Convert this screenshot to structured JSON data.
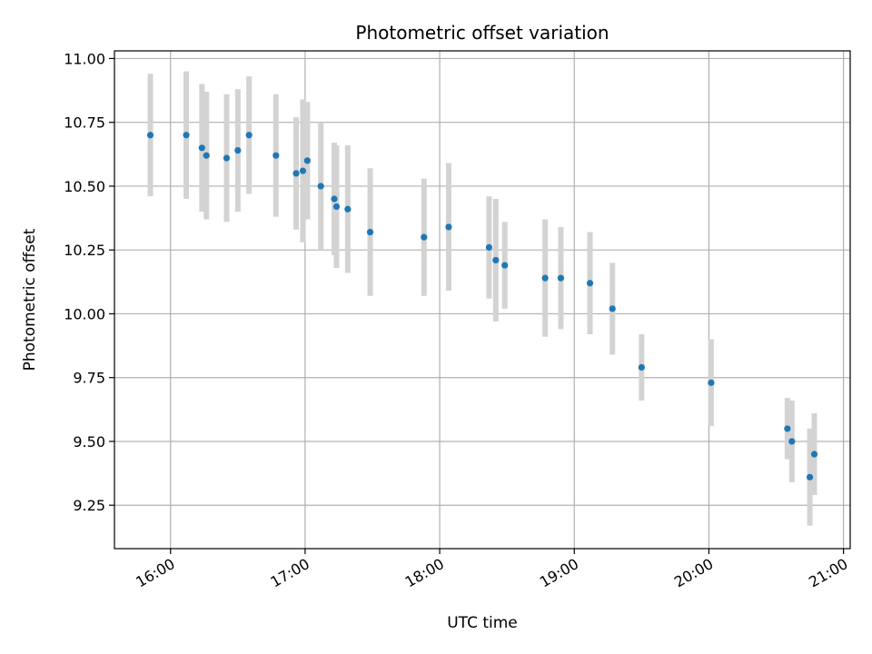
{
  "chart_data": {
    "type": "scatter",
    "title": "Photometric offset variation",
    "xlabel": "UTC time",
    "ylabel": "Photometric offset",
    "x_unit": "UTC time (HH:MM)",
    "xlim": [
      "15:35",
      "21:03"
    ],
    "ylim": [
      9.08,
      11.03
    ],
    "x_ticks": [
      "16:00",
      "17:00",
      "18:00",
      "19:00",
      "20:00",
      "21:00"
    ],
    "y_ticks": [
      9.25,
      9.5,
      9.75,
      10.0,
      10.25,
      10.5,
      10.75,
      11.0
    ],
    "y_tick_labels": [
      "9.25",
      "9.50",
      "9.75",
      "10.00",
      "10.25",
      "10.50",
      "10.75",
      "11.00"
    ],
    "grid": true,
    "colors": {
      "point": "#1f77b4",
      "error_bar": "#d3d3d3",
      "grid": "#b0b0b0"
    },
    "points": [
      {
        "x": "15:51",
        "y": 10.7,
        "err": 0.24
      },
      {
        "x": "16:07",
        "y": 10.7,
        "err": 0.25
      },
      {
        "x": "16:14",
        "y": 10.65,
        "err": 0.25
      },
      {
        "x": "16:16",
        "y": 10.62,
        "err": 0.25
      },
      {
        "x": "16:25",
        "y": 10.61,
        "err": 0.25
      },
      {
        "x": "16:30",
        "y": 10.64,
        "err": 0.24
      },
      {
        "x": "16:35",
        "y": 10.7,
        "err": 0.23
      },
      {
        "x": "16:47",
        "y": 10.62,
        "err": 0.24
      },
      {
        "x": "16:56",
        "y": 10.55,
        "err": 0.22
      },
      {
        "x": "16:59",
        "y": 10.56,
        "err": 0.28
      },
      {
        "x": "17:01",
        "y": 10.6,
        "err": 0.23
      },
      {
        "x": "17:07",
        "y": 10.5,
        "err": 0.25
      },
      {
        "x": "17:13",
        "y": 10.45,
        "err": 0.22
      },
      {
        "x": "17:14",
        "y": 10.42,
        "err": 0.24
      },
      {
        "x": "17:19",
        "y": 10.41,
        "err": 0.25
      },
      {
        "x": "17:29",
        "y": 10.32,
        "err": 0.25
      },
      {
        "x": "17:53",
        "y": 10.3,
        "err": 0.23
      },
      {
        "x": "18:04",
        "y": 10.34,
        "err": 0.25
      },
      {
        "x": "18:22",
        "y": 10.26,
        "err": 0.2
      },
      {
        "x": "18:25",
        "y": 10.21,
        "err": 0.24
      },
      {
        "x": "18:29",
        "y": 10.19,
        "err": 0.17
      },
      {
        "x": "18:47",
        "y": 10.14,
        "err": 0.23
      },
      {
        "x": "18:54",
        "y": 10.14,
        "err": 0.2
      },
      {
        "x": "19:07",
        "y": 10.12,
        "err": 0.2
      },
      {
        "x": "19:17",
        "y": 10.02,
        "err": 0.18
      },
      {
        "x": "19:30",
        "y": 9.79,
        "err": 0.13
      },
      {
        "x": "20:01",
        "y": 9.73,
        "err": 0.17
      },
      {
        "x": "20:35",
        "y": 9.55,
        "err": 0.12
      },
      {
        "x": "20:37",
        "y": 9.5,
        "err": 0.16
      },
      {
        "x": "20:45",
        "y": 9.36,
        "err": 0.19
      },
      {
        "x": "20:47",
        "y": 9.45,
        "err": 0.16
      }
    ]
  }
}
